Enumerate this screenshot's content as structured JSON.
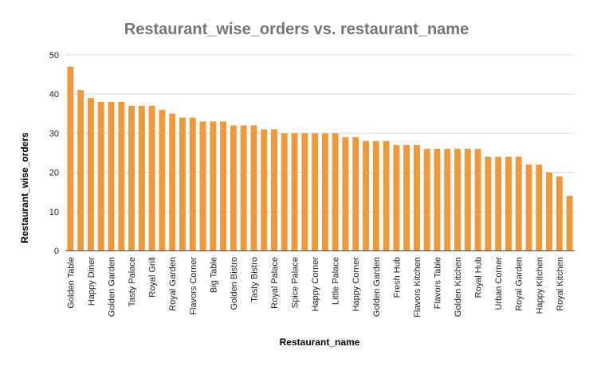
{
  "chart_data": {
    "type": "bar",
    "title": "Restaurant_wise_orders vs. restaurant_name",
    "xlabel": "Restaurant_name",
    "ylabel": "Restaurant_wise_orders",
    "ylim": [
      0,
      50
    ],
    "yticks": [
      0,
      10,
      20,
      30,
      40,
      50
    ],
    "grid": true,
    "legend": "none",
    "bar_color": "#ec9a3c",
    "categories": [
      "Golden Table",
      "",
      "Happy Diner",
      "",
      "Golden Garden",
      "",
      "Tasty Palace",
      "",
      "Royal Grill",
      "",
      "Royal Garden",
      "",
      "Flavors Corner",
      "",
      "Big Table",
      "",
      "Golden Bistro",
      "",
      "Tasty Bistro",
      "",
      "Royal Palace",
      "",
      "Spice Palace",
      "",
      "Happy Corner",
      "",
      "Little Palace",
      "",
      "Happy Corner",
      "",
      "Golden Garden",
      "",
      "Fresh Hub",
      "",
      "Flavors Kitchen",
      "",
      "Flavors Table",
      "",
      "Golden Kitchen",
      "",
      "Royal Hub",
      "",
      "Urban Corner",
      "",
      "Royal Garden",
      "",
      "Happy Kitchen",
      "",
      "Royal Kitchen",
      ""
    ],
    "values": [
      47,
      41,
      39,
      38,
      38,
      38,
      37,
      37,
      37,
      36,
      35,
      34,
      34,
      33,
      33,
      33,
      32,
      32,
      32,
      31,
      31,
      30,
      30,
      30,
      30,
      30,
      30,
      29,
      29,
      28,
      28,
      28,
      27,
      27,
      27,
      26,
      26,
      26,
      26,
      26,
      26,
      24,
      24,
      24,
      24,
      22,
      22,
      20,
      19,
      14
    ]
  }
}
